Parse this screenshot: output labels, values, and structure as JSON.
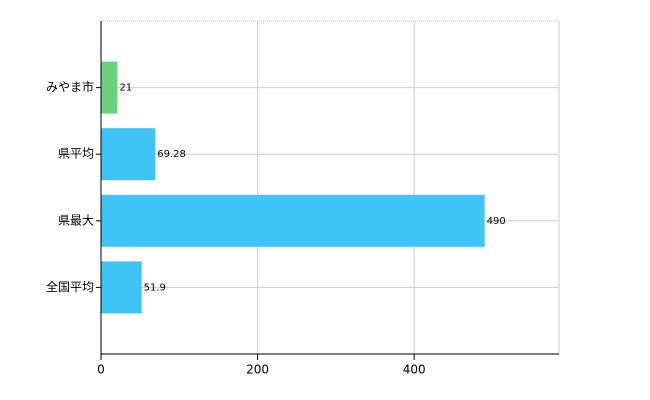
{
  "chart_data": {
    "type": "bar",
    "orientation": "horizontal",
    "categories": [
      "みやま市",
      "県平均",
      "県最大",
      "全国平均"
    ],
    "values": [
      21,
      69.28,
      490,
      51.9
    ],
    "colors": [
      "#6cd17e",
      "#3ec5f5",
      "#3ec5f5",
      "#3ec5f5"
    ],
    "xlim": [
      0,
      585
    ],
    "xticks": [
      0,
      200,
      400
    ],
    "grid": true
  }
}
